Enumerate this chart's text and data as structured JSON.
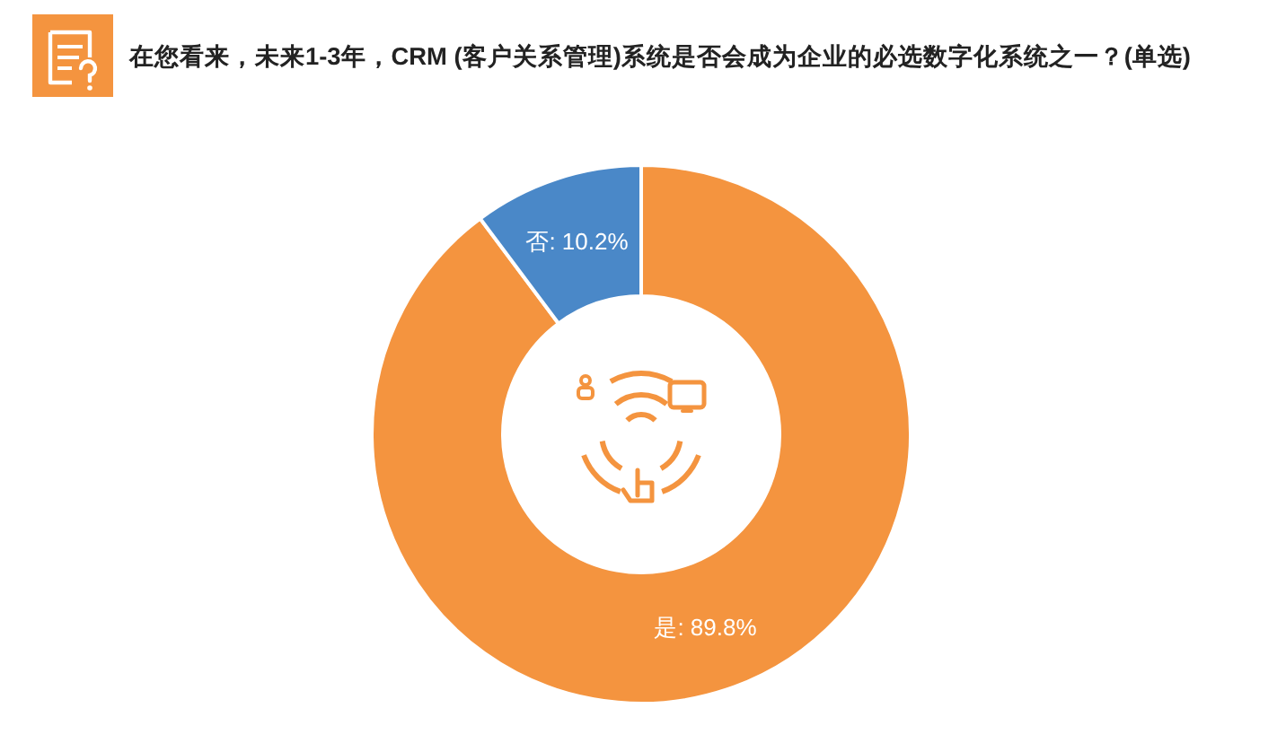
{
  "chart_data": {
    "type": "donut",
    "title": "在您看来，未来1-3年，CRM (客户关系管理)系统是否会成为企业的必选数字化系统之一？(单选)",
    "categories": [
      "是",
      "否"
    ],
    "values": [
      89.8,
      10.2
    ],
    "colors": [
      "#f4943f",
      "#4a88c8"
    ],
    "value_labels": [
      "89.8%",
      "10.2%"
    ]
  }
}
